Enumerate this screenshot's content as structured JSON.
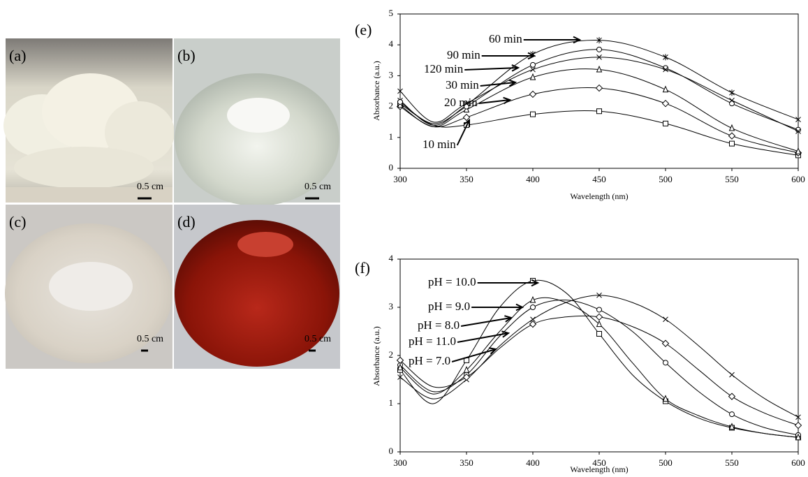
{
  "photos": [
    {
      "label": "(a)",
      "scale": "0.5 cm"
    },
    {
      "label": "(b)",
      "scale": "0.5 cm"
    },
    {
      "label": "(c)",
      "scale": "0.5 cm"
    },
    {
      "label": "(d)",
      "scale": "0.5 cm"
    }
  ],
  "chart_data": [
    {
      "type": "line",
      "label": "(e)",
      "x_label": "Wavelength (nm)",
      "y_label": "Absorbance (a.u.)",
      "x": [
        300,
        325,
        350,
        400,
        450,
        500,
        550,
        600
      ],
      "xlim": [
        300,
        600
      ],
      "xticks": [
        300,
        350,
        400,
        450,
        500,
        550,
        600
      ],
      "ylim": [
        0,
        5
      ],
      "yticks": [
        0,
        1,
        2,
        3,
        4,
        5
      ],
      "series": [
        {
          "name": "10 min",
          "color": "#000000",
          "marker": "square",
          "values": [
            2.1,
            1.4,
            1.4,
            1.75,
            1.85,
            1.45,
            0.8,
            0.42
          ]
        },
        {
          "name": "20 min",
          "color": "#000000",
          "marker": "diamond",
          "values": [
            2.0,
            1.35,
            1.65,
            2.4,
            2.6,
            2.1,
            1.05,
            0.5
          ]
        },
        {
          "name": "30 min",
          "color": "#000000",
          "marker": "triangle",
          "values": [
            2.05,
            1.35,
            1.9,
            2.95,
            3.2,
            2.55,
            1.3,
            0.55
          ]
        },
        {
          "name": "60 min",
          "color": "#000000",
          "marker": "star",
          "values": [
            2.2,
            1.4,
            2.05,
            3.7,
            4.15,
            3.6,
            2.45,
            1.58
          ]
        },
        {
          "name": "90 min",
          "color": "#000000",
          "marker": "circle",
          "values": [
            2.15,
            1.45,
            2.0,
            3.35,
            3.85,
            3.25,
            2.1,
            1.25
          ]
        },
        {
          "name": "120  min",
          "color": "#000000",
          "marker": "cross",
          "values": [
            2.5,
            1.5,
            2.1,
            3.2,
            3.6,
            3.2,
            2.2,
            1.2
          ]
        }
      ]
    },
    {
      "type": "line",
      "label": "(f)",
      "x_label": "Wavelength (nm)",
      "y_label": "Absorbance (a.u.)",
      "x": [
        300,
        325,
        350,
        375,
        400,
        425,
        450,
        475,
        500,
        525,
        550,
        575,
        600
      ],
      "xlim": [
        300,
        600
      ],
      "xticks": [
        300,
        350,
        400,
        450,
        500,
        550,
        600
      ],
      "ylim": [
        0,
        4
      ],
      "yticks": [
        0,
        1,
        2,
        3,
        4
      ],
      "series": [
        {
          "name": "pH = 10.0",
          "color": "#000000",
          "marker": "square",
          "values": [
            1.7,
            1.0,
            1.9,
            3.0,
            3.55,
            3.3,
            2.45,
            1.6,
            1.05,
            0.7,
            0.5,
            0.38,
            0.3
          ]
        },
        {
          "name": "pH = 9.0",
          "color": "#000000",
          "marker": "circle",
          "values": [
            1.8,
            1.25,
            1.6,
            2.4,
            3.0,
            3.15,
            2.95,
            2.5,
            1.85,
            1.25,
            0.78,
            0.5,
            0.35
          ]
        },
        {
          "name": "pH = 8.0",
          "color": "#000000",
          "marker": "triangle",
          "values": [
            1.75,
            1.2,
            1.7,
            2.5,
            3.15,
            3.1,
            2.65,
            1.85,
            1.1,
            0.75,
            0.52,
            0.38,
            0.3
          ]
        },
        {
          "name": "pH = 11.0",
          "color": "#000000",
          "marker": "cross",
          "values": [
            1.55,
            1.1,
            1.5,
            2.2,
            2.75,
            3.1,
            3.25,
            3.1,
            2.75,
            2.2,
            1.6,
            1.1,
            0.72
          ]
        },
        {
          "name": "pH = 7.0",
          "color": "#000000",
          "marker": "diamond",
          "values": [
            1.9,
            1.35,
            1.55,
            2.15,
            2.65,
            2.8,
            2.8,
            2.6,
            2.25,
            1.7,
            1.15,
            0.8,
            0.55
          ]
        }
      ]
    }
  ]
}
